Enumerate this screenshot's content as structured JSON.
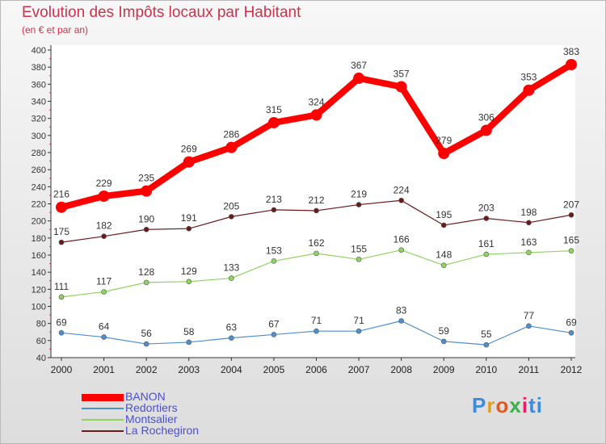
{
  "title": "Evolution des Impôts locaux par Habitant",
  "subtitle": "(en € et par an)",
  "brand": "Proxiti",
  "chart_data": {
    "type": "line",
    "title": "Evolution des Impôts locaux par Habitant",
    "subtitle": "(en € et par an)",
    "xlabel": "",
    "ylabel": "",
    "x": [
      "2000",
      "2001",
      "2002",
      "2003",
      "2004",
      "2005",
      "2006",
      "2007",
      "2008",
      "2009",
      "2010",
      "2011",
      "2012"
    ],
    "ylim": [
      40,
      400
    ],
    "yticks": [
      40,
      60,
      80,
      100,
      120,
      140,
      160,
      180,
      200,
      220,
      240,
      260,
      280,
      300,
      320,
      340,
      360,
      380,
      400
    ],
    "grid": false,
    "legend_position": "bottom-left",
    "series": [
      {
        "name": "BANON",
        "color": "#ff0000",
        "values": [
          216,
          229,
          235,
          269,
          286,
          315,
          324,
          367,
          357,
          279,
          306,
          353,
          383
        ]
      },
      {
        "name": "Redortiers",
        "color": "#4f8fcf",
        "values": [
          69,
          64,
          56,
          58,
          63,
          67,
          71,
          71,
          83,
          59,
          55,
          77,
          69
        ]
      },
      {
        "name": "Montsalier",
        "color": "#90d460",
        "values": [
          111,
          117,
          128,
          129,
          133,
          153,
          162,
          155,
          166,
          148,
          161,
          163,
          165
        ]
      },
      {
        "name": "La Rochegiron",
        "color": "#6b1a1a",
        "values": [
          175,
          182,
          190,
          191,
          205,
          213,
          212,
          219,
          224,
          195,
          203,
          198,
          207
        ]
      }
    ]
  }
}
